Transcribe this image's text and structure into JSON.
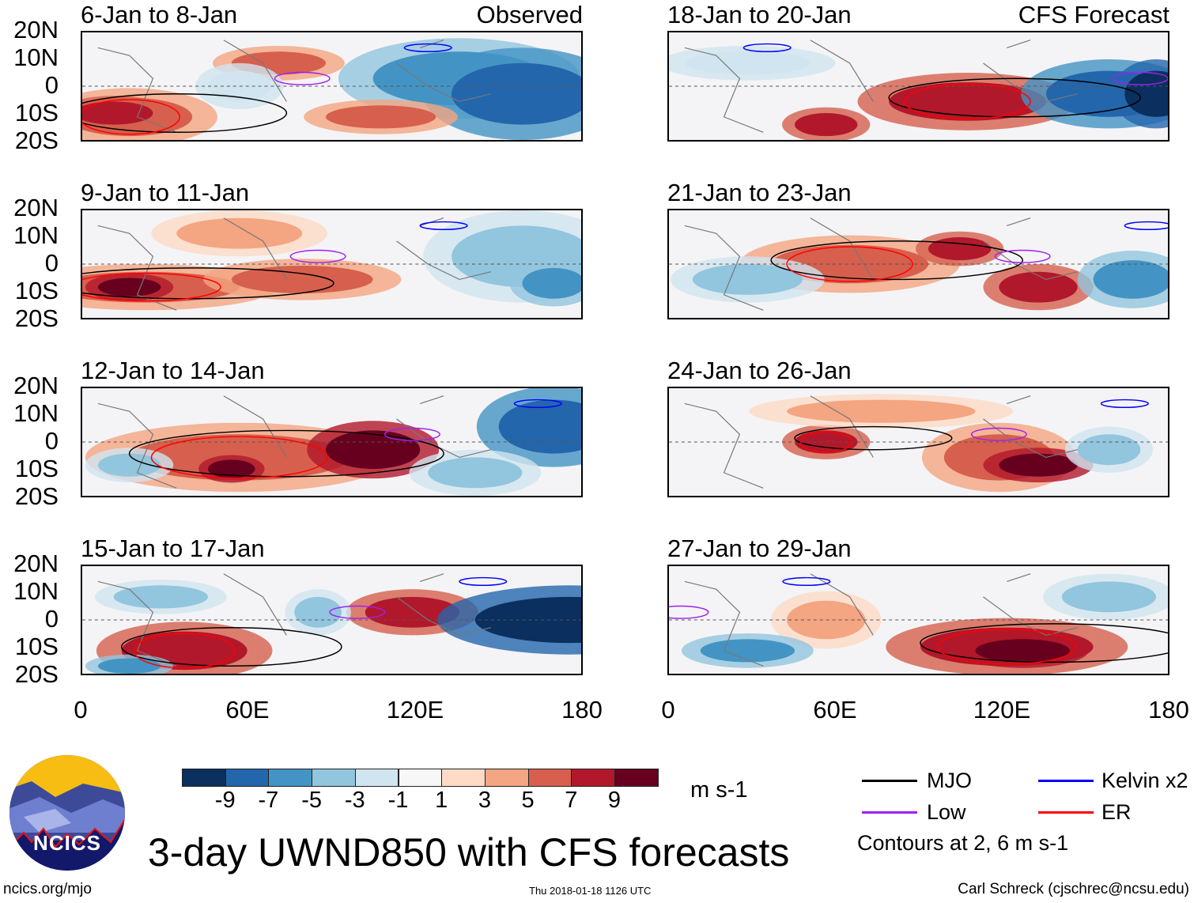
{
  "panels": {
    "left": [
      {
        "title": "6-Jan to 8-Jan",
        "tag": "Observed"
      },
      {
        "title": "9-Jan to 11-Jan"
      },
      {
        "title": "12-Jan to 14-Jan"
      },
      {
        "title": "15-Jan to 17-Jan"
      }
    ],
    "right": [
      {
        "title": "18-Jan to 20-Jan",
        "tag": "CFS Forecast"
      },
      {
        "title": "21-Jan to 23-Jan"
      },
      {
        "title": "24-Jan to 26-Jan"
      },
      {
        "title": "27-Jan to 29-Jan"
      }
    ]
  },
  "axes": {
    "lat_labels": [
      "20N",
      "10N",
      "0",
      "10S",
      "20S"
    ],
    "lon_labels": [
      "0",
      "60E",
      "120E",
      "180"
    ]
  },
  "colorbar": {
    "colors": [
      "#0b2f5e",
      "#2466ac",
      "#4394c4",
      "#92c5de",
      "#d1e5f0",
      "#f7f7f7",
      "#fddbc7",
      "#f4a582",
      "#d6604d",
      "#b2182b",
      "#67001f"
    ],
    "labels": [
      "-9",
      "-7",
      "-5",
      "-3",
      "-1",
      "1",
      "3",
      "5",
      "7",
      "9"
    ],
    "units": "m s-1"
  },
  "legend": {
    "items": [
      {
        "label": "MJO",
        "color": "#000000"
      },
      {
        "label": "Kelvin x2",
        "color": "#0000ff"
      },
      {
        "label": "Low",
        "color": "#a020f0"
      },
      {
        "label": "ER",
        "color": "#ff0000"
      }
    ],
    "note": "Contours at 2, 6 m s-1"
  },
  "logo": {
    "text": "NCICS"
  },
  "title": "3-day UWND850 with CFS forecasts",
  "footer": {
    "url": "ncics.org/mjo",
    "timestamp": "Thu 2018-01-18 1126 UTC",
    "author": "Carl Schreck (cjschrec@ncsu.edu)"
  }
}
